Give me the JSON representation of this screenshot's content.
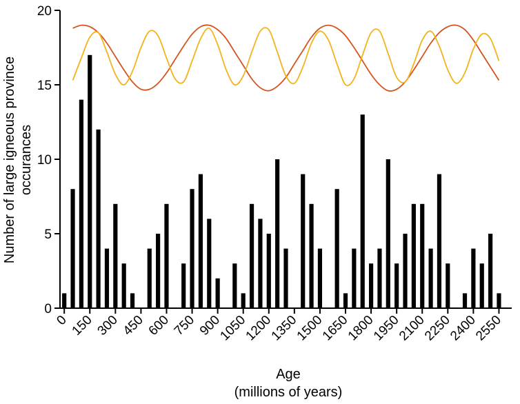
{
  "chart_data": {
    "type": "bar",
    "title": "",
    "xlabel_lines": [
      "Age",
      "(millions of years)"
    ],
    "ylabel_lines": [
      "Number of large igneous province",
      "occurances"
    ],
    "xlim": [
      -25,
      2625
    ],
    "ylim": [
      0,
      20
    ],
    "x_ticks": [
      0,
      150,
      300,
      450,
      600,
      750,
      900,
      1050,
      1200,
      1350,
      1500,
      1650,
      1800,
      1950,
      2100,
      2250,
      2400,
      2550
    ],
    "y_ticks": [
      0,
      5,
      10,
      15,
      20
    ],
    "bin_width": 25,
    "bars": {
      "x": [
        0,
        50,
        100,
        150,
        200,
        250,
        300,
        350,
        400,
        450,
        500,
        550,
        600,
        650,
        700,
        750,
        800,
        850,
        900,
        950,
        1000,
        1050,
        1100,
        1150,
        1200,
        1250,
        1300,
        1350,
        1400,
        1450,
        1500,
        1550,
        1600,
        1650,
        1700,
        1750,
        1800,
        1850,
        1900,
        1950,
        2000,
        2050,
        2100,
        2150,
        2200,
        2250,
        2300,
        2350,
        2400,
        2450,
        2500,
        2550
      ],
      "values": [
        1,
        8,
        14,
        17,
        12,
        4,
        7,
        3,
        1,
        0,
        4,
        5,
        7,
        0,
        3,
        8,
        9,
        6,
        2,
        0,
        3,
        1,
        7,
        6,
        5,
        10,
        4,
        0,
        9,
        7,
        4,
        0,
        8,
        1,
        4,
        13,
        3,
        4,
        10,
        3,
        5,
        7,
        7,
        4,
        9,
        3,
        0,
        1,
        4,
        3,
        5,
        1
      ]
    },
    "series": [
      {
        "type": "line",
        "color": "#d4531f",
        "x": [
          50,
          100,
          150,
          200,
          250,
          300,
          350,
          400,
          450,
          500,
          550,
          600,
          650,
          700,
          750,
          800,
          850,
          900,
          950,
          1000,
          1050,
          1100,
          1150,
          1200,
          1250,
          1300,
          1350,
          1400,
          1450,
          1500,
          1550,
          1600,
          1650,
          1700,
          1750,
          1800,
          1850,
          1900,
          1950,
          2000,
          2050,
          2100,
          2150,
          2200,
          2250,
          2300,
          2350,
          2400,
          2450,
          2500,
          2550
        ],
        "values": [
          18.8,
          19.0,
          18.9,
          18.5,
          17.8,
          16.9,
          16.0,
          15.2,
          14.7,
          14.7,
          15.1,
          15.8,
          16.7,
          17.6,
          18.4,
          18.9,
          19.0,
          18.7,
          18.1,
          17.2,
          16.3,
          15.4,
          14.8,
          14.6,
          14.9,
          15.5,
          16.4,
          17.3,
          18.2,
          18.8,
          19.0,
          18.8,
          18.3,
          17.5,
          16.6,
          15.7,
          15.0,
          14.6,
          14.7,
          15.2,
          16.0,
          16.9,
          17.8,
          18.5,
          18.9,
          19.0,
          18.7,
          18.0,
          17.1,
          16.2,
          15.3
        ]
      },
      {
        "type": "line",
        "color": "#f2b31b",
        "x": [
          50,
          100,
          150,
          200,
          250,
          300,
          350,
          400,
          450,
          500,
          550,
          600,
          650,
          700,
          750,
          800,
          850,
          900,
          950,
          1000,
          1050,
          1100,
          1150,
          1200,
          1250,
          1300,
          1350,
          1400,
          1450,
          1500,
          1550,
          1600,
          1650,
          1700,
          1750,
          1800,
          1850,
          1900,
          1950,
          2000,
          2050,
          2100,
          2150,
          2200,
          2250,
          2300,
          2350,
          2400,
          2450,
          2500,
          2550
        ],
        "values": [
          15.3,
          16.8,
          18.2,
          18.5,
          17.2,
          15.7,
          15.0,
          15.9,
          17.5,
          18.6,
          18.3,
          16.8,
          15.4,
          15.2,
          16.6,
          18.1,
          18.8,
          17.7,
          16.0,
          15.0,
          15.6,
          17.2,
          18.6,
          18.7,
          17.2,
          15.6,
          15.1,
          16.2,
          17.8,
          18.6,
          18.0,
          16.4,
          15.0,
          15.4,
          17.0,
          18.5,
          18.6,
          17.1,
          15.5,
          15.2,
          16.4,
          18.0,
          18.6,
          17.6,
          16.0,
          15.1,
          15.8,
          17.4,
          18.4,
          18.1,
          16.6
        ]
      }
    ]
  }
}
